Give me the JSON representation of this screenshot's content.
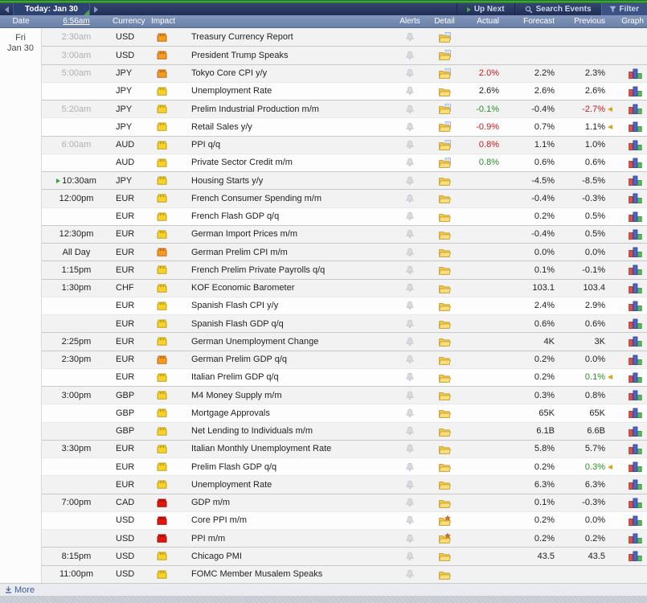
{
  "navbar": {
    "today_label": "Today: Jan 30",
    "up_next": "Up Next",
    "search": "Search Events",
    "filter": "Filter"
  },
  "header": {
    "date": "Date",
    "time": "6:56am",
    "currency": "Currency",
    "impact": "Impact",
    "alerts": "Alerts",
    "detail": "Detail",
    "actual": "Actual",
    "forecast": "Forecast",
    "previous": "Previous",
    "graph": "Graph"
  },
  "date_cell": {
    "weekday": "Fri",
    "date": "Jan 30"
  },
  "footer": {
    "more": "More"
  },
  "colors": {
    "good": "#2a8f2a",
    "bad": "#c61a1a",
    "default_value": "#222222",
    "revision_marker": "#d9a21c",
    "next_marker": "#35a335",
    "impact": {
      "yellow": {
        "fill": "#f7d22c",
        "stroke": "#bfa011"
      },
      "orange": {
        "fill": "#f59a23",
        "stroke": "#bb6d12"
      },
      "red": {
        "fill": "#e4150c",
        "stroke": "#9e0d06"
      }
    }
  },
  "rows": [
    {
      "time": "2:30am",
      "past": true,
      "next": false,
      "currency": "USD",
      "impact": "orange",
      "event": "Treasury Currency Report",
      "detail": "doc",
      "actual": "",
      "actual_tone": "",
      "forecast": "",
      "previous": "",
      "previous_tone": "",
      "revised": false,
      "graph": false,
      "group_start": true
    },
    {
      "time": "3:00am",
      "past": true,
      "next": false,
      "currency": "USD",
      "impact": "orange",
      "event": "President Trump Speaks",
      "detail": "doc",
      "actual": "",
      "actual_tone": "",
      "forecast": "",
      "previous": "",
      "previous_tone": "",
      "revised": false,
      "graph": false,
      "group_start": true
    },
    {
      "time": "5:00am",
      "past": true,
      "next": false,
      "currency": "JPY",
      "impact": "orange",
      "event": "Tokyo Core CPI y/y",
      "detail": "doc",
      "actual": "2.0%",
      "actual_tone": "bad",
      "forecast": "2.2%",
      "previous": "2.3%",
      "previous_tone": "",
      "revised": false,
      "graph": true,
      "group_start": true
    },
    {
      "time": "",
      "past": true,
      "next": false,
      "currency": "JPY",
      "impact": "yellow",
      "event": "Unemployment Rate",
      "detail": "folder",
      "actual": "2.6%",
      "actual_tone": "",
      "forecast": "2.6%",
      "previous": "2.6%",
      "previous_tone": "",
      "revised": false,
      "graph": true,
      "group_start": false
    },
    {
      "time": "5:20am",
      "past": true,
      "next": false,
      "currency": "JPY",
      "impact": "yellow",
      "event": "Prelim Industrial Production m/m",
      "detail": "doc",
      "actual": "-0.1%",
      "actual_tone": "good",
      "forecast": "-0.4%",
      "previous": "-2.7%",
      "previous_tone": "bad",
      "revised": true,
      "graph": true,
      "group_start": true
    },
    {
      "time": "",
      "past": true,
      "next": false,
      "currency": "JPY",
      "impact": "yellow",
      "event": "Retail Sales y/y",
      "detail": "doc",
      "actual": "-0.9%",
      "actual_tone": "bad",
      "forecast": "0.7%",
      "previous": "1.1%",
      "previous_tone": "",
      "revised": true,
      "graph": true,
      "group_start": false
    },
    {
      "time": "6:00am",
      "past": true,
      "next": false,
      "currency": "AUD",
      "impact": "yellow",
      "event": "PPI q/q",
      "detail": "doc",
      "actual": "0.8%",
      "actual_tone": "bad",
      "forecast": "1.1%",
      "previous": "1.0%",
      "previous_tone": "",
      "revised": false,
      "graph": true,
      "group_start": true
    },
    {
      "time": "",
      "past": true,
      "next": false,
      "currency": "AUD",
      "impact": "yellow",
      "event": "Private Sector Credit m/m",
      "detail": "doc",
      "actual": "0.8%",
      "actual_tone": "good",
      "forecast": "0.6%",
      "previous": "0.6%",
      "previous_tone": "",
      "revised": false,
      "graph": true,
      "group_start": false
    },
    {
      "time": "10:30am",
      "past": false,
      "next": true,
      "currency": "JPY",
      "impact": "yellow",
      "event": "Housing Starts y/y",
      "detail": "folder",
      "actual": "",
      "actual_tone": "",
      "forecast": "-4.5%",
      "previous": "-8.5%",
      "previous_tone": "",
      "revised": false,
      "graph": true,
      "group_start": true
    },
    {
      "time": "12:00pm",
      "past": false,
      "next": false,
      "currency": "EUR",
      "impact": "yellow",
      "event": "French Consumer Spending m/m",
      "detail": "folder",
      "actual": "",
      "actual_tone": "",
      "forecast": "-0.4%",
      "previous": "-0.3%",
      "previous_tone": "",
      "revised": false,
      "graph": true,
      "group_start": true
    },
    {
      "time": "",
      "past": false,
      "next": false,
      "currency": "EUR",
      "impact": "yellow",
      "event": "French Flash GDP q/q",
      "detail": "folder",
      "actual": "",
      "actual_tone": "",
      "forecast": "0.2%",
      "previous": "0.5%",
      "previous_tone": "",
      "revised": false,
      "graph": true,
      "group_start": false
    },
    {
      "time": "12:30pm",
      "past": false,
      "next": false,
      "currency": "EUR",
      "impact": "yellow",
      "event": "German Import Prices m/m",
      "detail": "folder",
      "actual": "",
      "actual_tone": "",
      "forecast": "-0.4%",
      "previous": "0.5%",
      "previous_tone": "",
      "revised": false,
      "graph": true,
      "group_start": true
    },
    {
      "time": "All Day",
      "past": false,
      "next": false,
      "currency": "EUR",
      "impact": "orange",
      "event": "German Prelim CPI m/m",
      "detail": "folder",
      "actual": "",
      "actual_tone": "",
      "forecast": "0.0%",
      "previous": "0.0%",
      "previous_tone": "",
      "revised": false,
      "graph": true,
      "group_start": true
    },
    {
      "time": "1:15pm",
      "past": false,
      "next": false,
      "currency": "EUR",
      "impact": "yellow",
      "event": "French Prelim Private Payrolls q/q",
      "detail": "folder",
      "actual": "",
      "actual_tone": "",
      "forecast": "0.1%",
      "previous": "-0.1%",
      "previous_tone": "",
      "revised": false,
      "graph": true,
      "group_start": true
    },
    {
      "time": "1:30pm",
      "past": false,
      "next": false,
      "currency": "CHF",
      "impact": "yellow",
      "event": "KOF Economic Barometer",
      "detail": "folder",
      "actual": "",
      "actual_tone": "",
      "forecast": "103.1",
      "previous": "103.4",
      "previous_tone": "",
      "revised": false,
      "graph": true,
      "group_start": true
    },
    {
      "time": "",
      "past": false,
      "next": false,
      "currency": "EUR",
      "impact": "yellow",
      "event": "Spanish Flash CPI y/y",
      "detail": "folder",
      "actual": "",
      "actual_tone": "",
      "forecast": "2.4%",
      "previous": "2.9%",
      "previous_tone": "",
      "revised": false,
      "graph": true,
      "group_start": false
    },
    {
      "time": "",
      "past": false,
      "next": false,
      "currency": "EUR",
      "impact": "yellow",
      "event": "Spanish Flash GDP q/q",
      "detail": "folder",
      "actual": "",
      "actual_tone": "",
      "forecast": "0.6%",
      "previous": "0.6%",
      "previous_tone": "",
      "revised": false,
      "graph": true,
      "group_start": false
    },
    {
      "time": "2:25pm",
      "past": false,
      "next": false,
      "currency": "EUR",
      "impact": "yellow",
      "event": "German Unemployment Change",
      "detail": "folder",
      "actual": "",
      "actual_tone": "",
      "forecast": "4K",
      "previous": "3K",
      "previous_tone": "",
      "revised": false,
      "graph": true,
      "group_start": true
    },
    {
      "time": "2:30pm",
      "past": false,
      "next": false,
      "currency": "EUR",
      "impact": "orange",
      "event": "German Prelim GDP q/q",
      "detail": "folder",
      "actual": "",
      "actual_tone": "",
      "forecast": "0.2%",
      "previous": "0.0%",
      "previous_tone": "",
      "revised": false,
      "graph": true,
      "group_start": true
    },
    {
      "time": "",
      "past": false,
      "next": false,
      "currency": "EUR",
      "impact": "yellow",
      "event": "Italian Prelim GDP q/q",
      "detail": "folder",
      "actual": "",
      "actual_tone": "",
      "forecast": "0.2%",
      "previous": "0.1%",
      "previous_tone": "good",
      "revised": true,
      "graph": true,
      "group_start": false
    },
    {
      "time": "3:00pm",
      "past": false,
      "next": false,
      "currency": "GBP",
      "impact": "yellow",
      "event": "M4 Money Supply m/m",
      "detail": "folder",
      "actual": "",
      "actual_tone": "",
      "forecast": "0.3%",
      "previous": "0.8%",
      "previous_tone": "",
      "revised": false,
      "graph": true,
      "group_start": true
    },
    {
      "time": "",
      "past": false,
      "next": false,
      "currency": "GBP",
      "impact": "yellow",
      "event": "Mortgage Approvals",
      "detail": "folder",
      "actual": "",
      "actual_tone": "",
      "forecast": "65K",
      "previous": "65K",
      "previous_tone": "",
      "revised": false,
      "graph": true,
      "group_start": false
    },
    {
      "time": "",
      "past": false,
      "next": false,
      "currency": "GBP",
      "impact": "yellow",
      "event": "Net Lending to Individuals m/m",
      "detail": "folder",
      "actual": "",
      "actual_tone": "",
      "forecast": "6.1B",
      "previous": "6.6B",
      "previous_tone": "",
      "revised": false,
      "graph": true,
      "group_start": false
    },
    {
      "time": "3:30pm",
      "past": false,
      "next": false,
      "currency": "EUR",
      "impact": "yellow",
      "event": "Italian Monthly Unemployment Rate",
      "detail": "folder",
      "actual": "",
      "actual_tone": "",
      "forecast": "5.8%",
      "previous": "5.7%",
      "previous_tone": "",
      "revised": false,
      "graph": true,
      "group_start": true
    },
    {
      "time": "",
      "past": false,
      "next": false,
      "currency": "EUR",
      "impact": "yellow",
      "event": "Prelim Flash GDP q/q",
      "detail": "folder",
      "actual": "",
      "actual_tone": "",
      "forecast": "0.2%",
      "previous": "0.3%",
      "previous_tone": "good",
      "revised": true,
      "graph": true,
      "group_start": false
    },
    {
      "time": "",
      "past": false,
      "next": false,
      "currency": "EUR",
      "impact": "yellow",
      "event": "Unemployment Rate",
      "detail": "folder",
      "actual": "",
      "actual_tone": "",
      "forecast": "6.3%",
      "previous": "6.3%",
      "previous_tone": "",
      "revised": false,
      "graph": true,
      "group_start": false
    },
    {
      "time": "7:00pm",
      "past": false,
      "next": false,
      "currency": "CAD",
      "impact": "red",
      "event": "GDP m/m",
      "detail": "folder",
      "actual": "",
      "actual_tone": "",
      "forecast": "0.1%",
      "previous": "-0.3%",
      "previous_tone": "",
      "revised": false,
      "graph": true,
      "group_start": true
    },
    {
      "time": "",
      "past": false,
      "next": false,
      "currency": "USD",
      "impact": "red",
      "event": "Core PPI m/m",
      "detail": "star",
      "actual": "",
      "actual_tone": "",
      "forecast": "0.2%",
      "previous": "0.0%",
      "previous_tone": "",
      "revised": false,
      "graph": true,
      "group_start": false
    },
    {
      "time": "",
      "past": false,
      "next": false,
      "currency": "USD",
      "impact": "red",
      "event": "PPI m/m",
      "detail": "star",
      "actual": "",
      "actual_tone": "",
      "forecast": "0.2%",
      "previous": "0.2%",
      "previous_tone": "",
      "revised": false,
      "graph": true,
      "group_start": false
    },
    {
      "time": "8:15pm",
      "past": false,
      "next": false,
      "currency": "USD",
      "impact": "yellow",
      "event": "Chicago PMI",
      "detail": "folder",
      "actual": "",
      "actual_tone": "",
      "forecast": "43.5",
      "previous": "43.5",
      "previous_tone": "",
      "revised": false,
      "graph": true,
      "group_start": true
    },
    {
      "time": "11:00pm",
      "past": false,
      "next": false,
      "currency": "USD",
      "impact": "yellow",
      "event": "FOMC Member Musalem Speaks",
      "detail": "folder",
      "actual": "",
      "actual_tone": "",
      "forecast": "",
      "previous": "",
      "previous_tone": "",
      "revised": false,
      "graph": false,
      "group_start": true
    }
  ]
}
